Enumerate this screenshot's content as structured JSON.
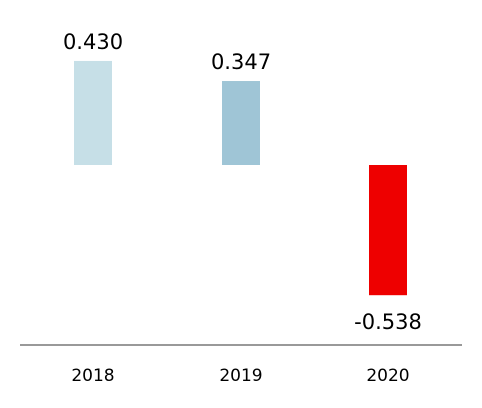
{
  "chart_data": {
    "type": "bar",
    "categories": [
      "2018",
      "2019",
      "2020"
    ],
    "values": [
      0.43,
      0.347,
      -0.538
    ],
    "value_labels": [
      "0.430",
      "0.347",
      "-0.538"
    ],
    "colors": [
      "#c6dfe7",
      "#9fc5d6",
      "#ee0000"
    ],
    "axis_color": "#999999",
    "title": "",
    "xlabel": "",
    "ylabel": "",
    "grid": false
  }
}
